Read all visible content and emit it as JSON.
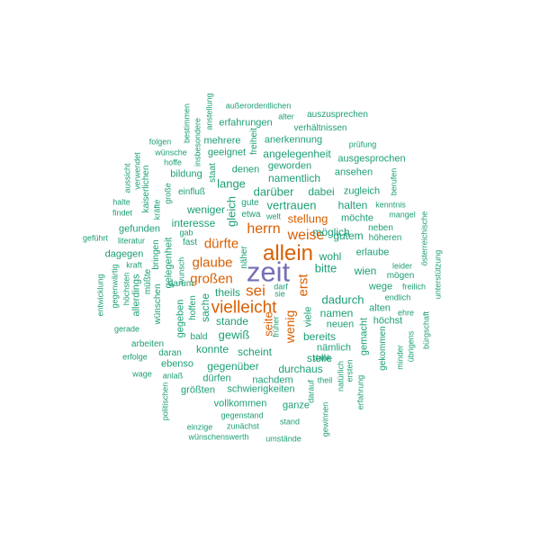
{
  "colors": {
    "small": "#1b9e77",
    "medium": "#d95f02",
    "large": "#7570b3"
  },
  "words": [
    {
      "text": "zeit",
      "color": "large"
    },
    {
      "text": "allein",
      "color": "medium"
    },
    {
      "text": "vielleicht",
      "color": "medium"
    },
    {
      "text": "herrn",
      "color": "medium"
    },
    {
      "text": "weise",
      "color": "medium"
    },
    {
      "text": "dürfte",
      "color": "medium"
    },
    {
      "text": "glaube",
      "color": "medium"
    },
    {
      "text": "großen",
      "color": "medium"
    },
    {
      "text": "sei",
      "color": "medium"
    },
    {
      "text": "stellung",
      "color": "medium"
    },
    {
      "text": "wenig",
      "color": "medium"
    },
    {
      "text": "erst",
      "color": "medium"
    },
    {
      "text": "seite",
      "color": "medium"
    },
    {
      "text": "darüber",
      "color": "small"
    },
    {
      "text": "dabei",
      "color": "small"
    },
    {
      "text": "zugleich",
      "color": "small"
    },
    {
      "text": "lange",
      "color": "small"
    },
    {
      "text": "namentlich",
      "color": "small"
    },
    {
      "text": "vertrauen",
      "color": "small"
    },
    {
      "text": "halten",
      "color": "small"
    },
    {
      "text": "kenntnis",
      "color": "small"
    },
    {
      "text": "gleich",
      "color": "small"
    },
    {
      "text": "möchte",
      "color": "small"
    },
    {
      "text": "neben",
      "color": "small"
    },
    {
      "text": "mangel",
      "color": "small"
    },
    {
      "text": "weniger",
      "color": "small"
    },
    {
      "text": "interesse",
      "color": "small"
    },
    {
      "text": "gute",
      "color": "small"
    },
    {
      "text": "etwa",
      "color": "small"
    },
    {
      "text": "welt",
      "color": "small"
    },
    {
      "text": "gab",
      "color": "small"
    },
    {
      "text": "fast",
      "color": "small"
    },
    {
      "text": "gefunden",
      "color": "small"
    },
    {
      "text": "literatur",
      "color": "small"
    },
    {
      "text": "dagegen",
      "color": "small"
    },
    {
      "text": "kraft",
      "color": "small"
    },
    {
      "text": "gegenwärtig",
      "color": "small"
    },
    {
      "text": "höchsten",
      "color": "small"
    },
    {
      "text": "allerdings",
      "color": "small"
    },
    {
      "text": "müßte",
      "color": "small"
    },
    {
      "text": "entwicklung",
      "color": "small"
    },
    {
      "text": "geführt",
      "color": "small"
    },
    {
      "text": "halte",
      "color": "small"
    },
    {
      "text": "findet",
      "color": "small"
    },
    {
      "text": "aussicht",
      "color": "small"
    },
    {
      "text": "verwendet",
      "color": "small"
    },
    {
      "text": "kaiserlichen",
      "color": "small"
    },
    {
      "text": "kräfte",
      "color": "small"
    },
    {
      "text": "große",
      "color": "small"
    },
    {
      "text": "einfluß",
      "color": "small"
    },
    {
      "text": "bildung",
      "color": "small"
    },
    {
      "text": "staat",
      "color": "small"
    },
    {
      "text": "hoffe",
      "color": "small"
    },
    {
      "text": "folgen",
      "color": "small"
    },
    {
      "text": "wünsche",
      "color": "small"
    },
    {
      "text": "insbesondere",
      "color": "small"
    },
    {
      "text": "bestimmen",
      "color": "small"
    },
    {
      "text": "anstellung",
      "color": "small"
    },
    {
      "text": "außerordentlichen",
      "color": "small"
    },
    {
      "text": "alter",
      "color": "small"
    },
    {
      "text": "auszusprechen",
      "color": "small"
    },
    {
      "text": "erfahrungen",
      "color": "small"
    },
    {
      "text": "verhältnissen",
      "color": "small"
    },
    {
      "text": "mehrere",
      "color": "small"
    },
    {
      "text": "freiheit",
      "color": "small"
    },
    {
      "text": "anerkennung",
      "color": "small"
    },
    {
      "text": "prüfung",
      "color": "small"
    },
    {
      "text": "geeignet",
      "color": "small"
    },
    {
      "text": "angelegenheit",
      "color": "small"
    },
    {
      "text": "ausgesprochen",
      "color": "small"
    },
    {
      "text": "geworden",
      "color": "small"
    },
    {
      "text": "denen",
      "color": "small"
    },
    {
      "text": "ansehen",
      "color": "small"
    },
    {
      "text": "berufen",
      "color": "small"
    },
    {
      "text": "österreichische",
      "color": "small"
    },
    {
      "text": "unterstützung",
      "color": "small"
    },
    {
      "text": "höheren",
      "color": "small"
    },
    {
      "text": "gelegenheit",
      "color": "small"
    },
    {
      "text": "wohl",
      "color": "small"
    },
    {
      "text": "gutem",
      "color": "small"
    },
    {
      "text": "erlaube",
      "color": "small"
    },
    {
      "text": "bitte",
      "color": "small"
    },
    {
      "text": "möglich",
      "color": "small"
    },
    {
      "text": "wien",
      "color": "small"
    },
    {
      "text": "leider",
      "color": "small"
    },
    {
      "text": "mögen",
      "color": "small"
    },
    {
      "text": "freilich",
      "color": "small"
    },
    {
      "text": "wege",
      "color": "small"
    },
    {
      "text": "ehre",
      "color": "small"
    },
    {
      "text": "endlich",
      "color": "small"
    },
    {
      "text": "dadurch",
      "color": "small"
    },
    {
      "text": "alten",
      "color": "small"
    },
    {
      "text": "höchst",
      "color": "small"
    },
    {
      "text": "namen",
      "color": "small"
    },
    {
      "text": "neuen",
      "color": "small"
    },
    {
      "text": "bereits",
      "color": "small"
    },
    {
      "text": "nämlich",
      "color": "small"
    },
    {
      "text": "stelle",
      "color": "small"
    },
    {
      "text": "gemacht",
      "color": "small"
    },
    {
      "text": "gekommen",
      "color": "small"
    },
    {
      "text": "minder",
      "color": "small"
    },
    {
      "text": "übrigens",
      "color": "small"
    },
    {
      "text": "bürgschaft",
      "color": "small"
    },
    {
      "text": "durchaus",
      "color": "small"
    },
    {
      "text": "natürlich",
      "color": "small"
    },
    {
      "text": "ersten",
      "color": "small"
    },
    {
      "text": "erfahrung",
      "color": "small"
    },
    {
      "text": "dank",
      "color": "small"
    },
    {
      "text": "theil",
      "color": "small"
    },
    {
      "text": "darauf",
      "color": "small"
    },
    {
      "text": "gewinnen",
      "color": "small"
    },
    {
      "text": "viele",
      "color": "small"
    },
    {
      "text": "früher",
      "color": "small"
    },
    {
      "text": "darf",
      "color": "small"
    },
    {
      "text": "sie",
      "color": "small"
    },
    {
      "text": "näher",
      "color": "small"
    },
    {
      "text": "wunsch",
      "color": "small"
    },
    {
      "text": "bringen",
      "color": "small"
    },
    {
      "text": "darum",
      "color": "small"
    },
    {
      "text": "gegeben",
      "color": "small"
    },
    {
      "text": "hoffen",
      "color": "small"
    },
    {
      "text": "sache",
      "color": "small"
    },
    {
      "text": "theils",
      "color": "small"
    },
    {
      "text": "stande",
      "color": "small"
    },
    {
      "text": "gewiß",
      "color": "small"
    },
    {
      "text": "bald",
      "color": "small"
    },
    {
      "text": "konnte",
      "color": "small"
    },
    {
      "text": "scheint",
      "color": "small"
    },
    {
      "text": "arbeiten",
      "color": "small"
    },
    {
      "text": "gerade",
      "color": "small"
    },
    {
      "text": "wünschen",
      "color": "small"
    },
    {
      "text": "daran",
      "color": "small"
    },
    {
      "text": "erfolge",
      "color": "small"
    },
    {
      "text": "ebenso",
      "color": "small"
    },
    {
      "text": "gegenüber",
      "color": "small"
    },
    {
      "text": "wage",
      "color": "small"
    },
    {
      "text": "anlaß",
      "color": "small"
    },
    {
      "text": "dürfen",
      "color": "small"
    },
    {
      "text": "nachdem",
      "color": "small"
    },
    {
      "text": "größten",
      "color": "small"
    },
    {
      "text": "schwierigkeiten",
      "color": "small"
    },
    {
      "text": "politischen",
      "color": "small"
    },
    {
      "text": "vollkommen",
      "color": "small"
    },
    {
      "text": "ganze",
      "color": "small"
    },
    {
      "text": "gegenstand",
      "color": "small"
    },
    {
      "text": "stand",
      "color": "small"
    },
    {
      "text": "einzige",
      "color": "small"
    },
    {
      "text": "zunächst",
      "color": "small"
    },
    {
      "text": "wünschenswerth",
      "color": "small"
    },
    {
      "text": "umstände",
      "color": "small"
    }
  ]
}
